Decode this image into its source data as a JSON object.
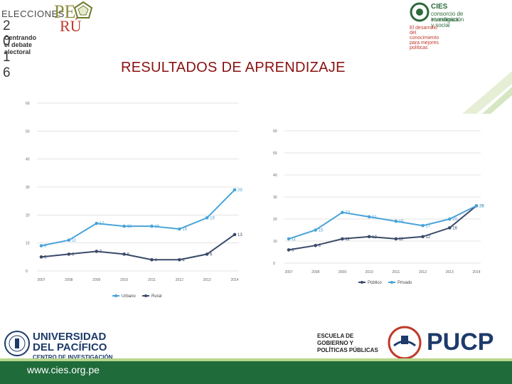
{
  "header": {
    "elecciones_top": "ELECCIONES",
    "elecciones_pe": "PE",
    "elecciones_year": "2 0 1 6",
    "elecciones_ru": "RÚ",
    "elecciones_sub": "Centrando el debate electoral",
    "cies_name": "CIES",
    "cies_line1": "consorcio de investigación",
    "cies_line2": "económica y social",
    "cies_tag": "El desarrollo del conocimiento para mejores políticas"
  },
  "slide": {
    "title": "RESULTADOS DE APRENDIZAJE"
  },
  "footer": {
    "website": "www.cies.org.pe",
    "up_line1": "UNIVERSIDAD",
    "up_line2": "DEL PACÍFICO",
    "up_sub": "CENTRO DE INVESTIGACIÓN",
    "escuela_line1": "ESCUELA DE",
    "escuela_line2": "GOBIERNO Y",
    "escuela_line3": "POLÍTICAS PÚBLICAS",
    "pucp": "PUCP"
  },
  "colors": {
    "title": "#8b1010",
    "series_light": "#4aa3d8",
    "series_dark": "#3a4a6a",
    "footer_bar": "#1f6b3a"
  },
  "chart_data": [
    {
      "type": "line",
      "categories": [
        "2007",
        "2008",
        "2009",
        "2010",
        "2011",
        "2012",
        "2013",
        "2014"
      ],
      "ylim": [
        0,
        60
      ],
      "yticks": [
        "0",
        "10",
        "20",
        "30",
        "40",
        "50",
        "60"
      ],
      "series": [
        {
          "name": "Urbano",
          "values": [
            9,
            11,
            17,
            16,
            16,
            15,
            19,
            29
          ],
          "labels": [
            "9",
            "11",
            "17",
            "16",
            "16",
            "15",
            "19",
            "29"
          ]
        },
        {
          "name": "Rural",
          "values": [
            5,
            6,
            7,
            6,
            4,
            4,
            6,
            13
          ],
          "labels": [
            "5",
            "6",
            "7",
            "6",
            "4",
            "4",
            "6",
            "13"
          ]
        }
      ],
      "legend": "bottom"
    },
    {
      "type": "line",
      "categories": [
        "2007",
        "2008",
        "2009",
        "2010",
        "2011",
        "2012",
        "2013",
        "2014"
      ],
      "ylim": [
        0,
        60
      ],
      "yticks": [
        "0",
        "10",
        "20",
        "30",
        "40",
        "50",
        "60"
      ],
      "series": [
        {
          "name": "Público",
          "values": [
            6,
            8,
            11,
            12,
            11,
            12,
            16,
            26
          ],
          "labels": [
            "6",
            "8",
            "11",
            "12",
            "11",
            "12",
            "16",
            "26"
          ]
        },
        {
          "name": "Privado",
          "values": [
            11,
            15,
            23,
            21,
            19,
            17,
            20,
            26
          ],
          "labels": [
            "11",
            "15",
            "23",
            "21",
            "19",
            "17",
            "20",
            "26"
          ]
        }
      ],
      "legend": "bottom"
    }
  ]
}
